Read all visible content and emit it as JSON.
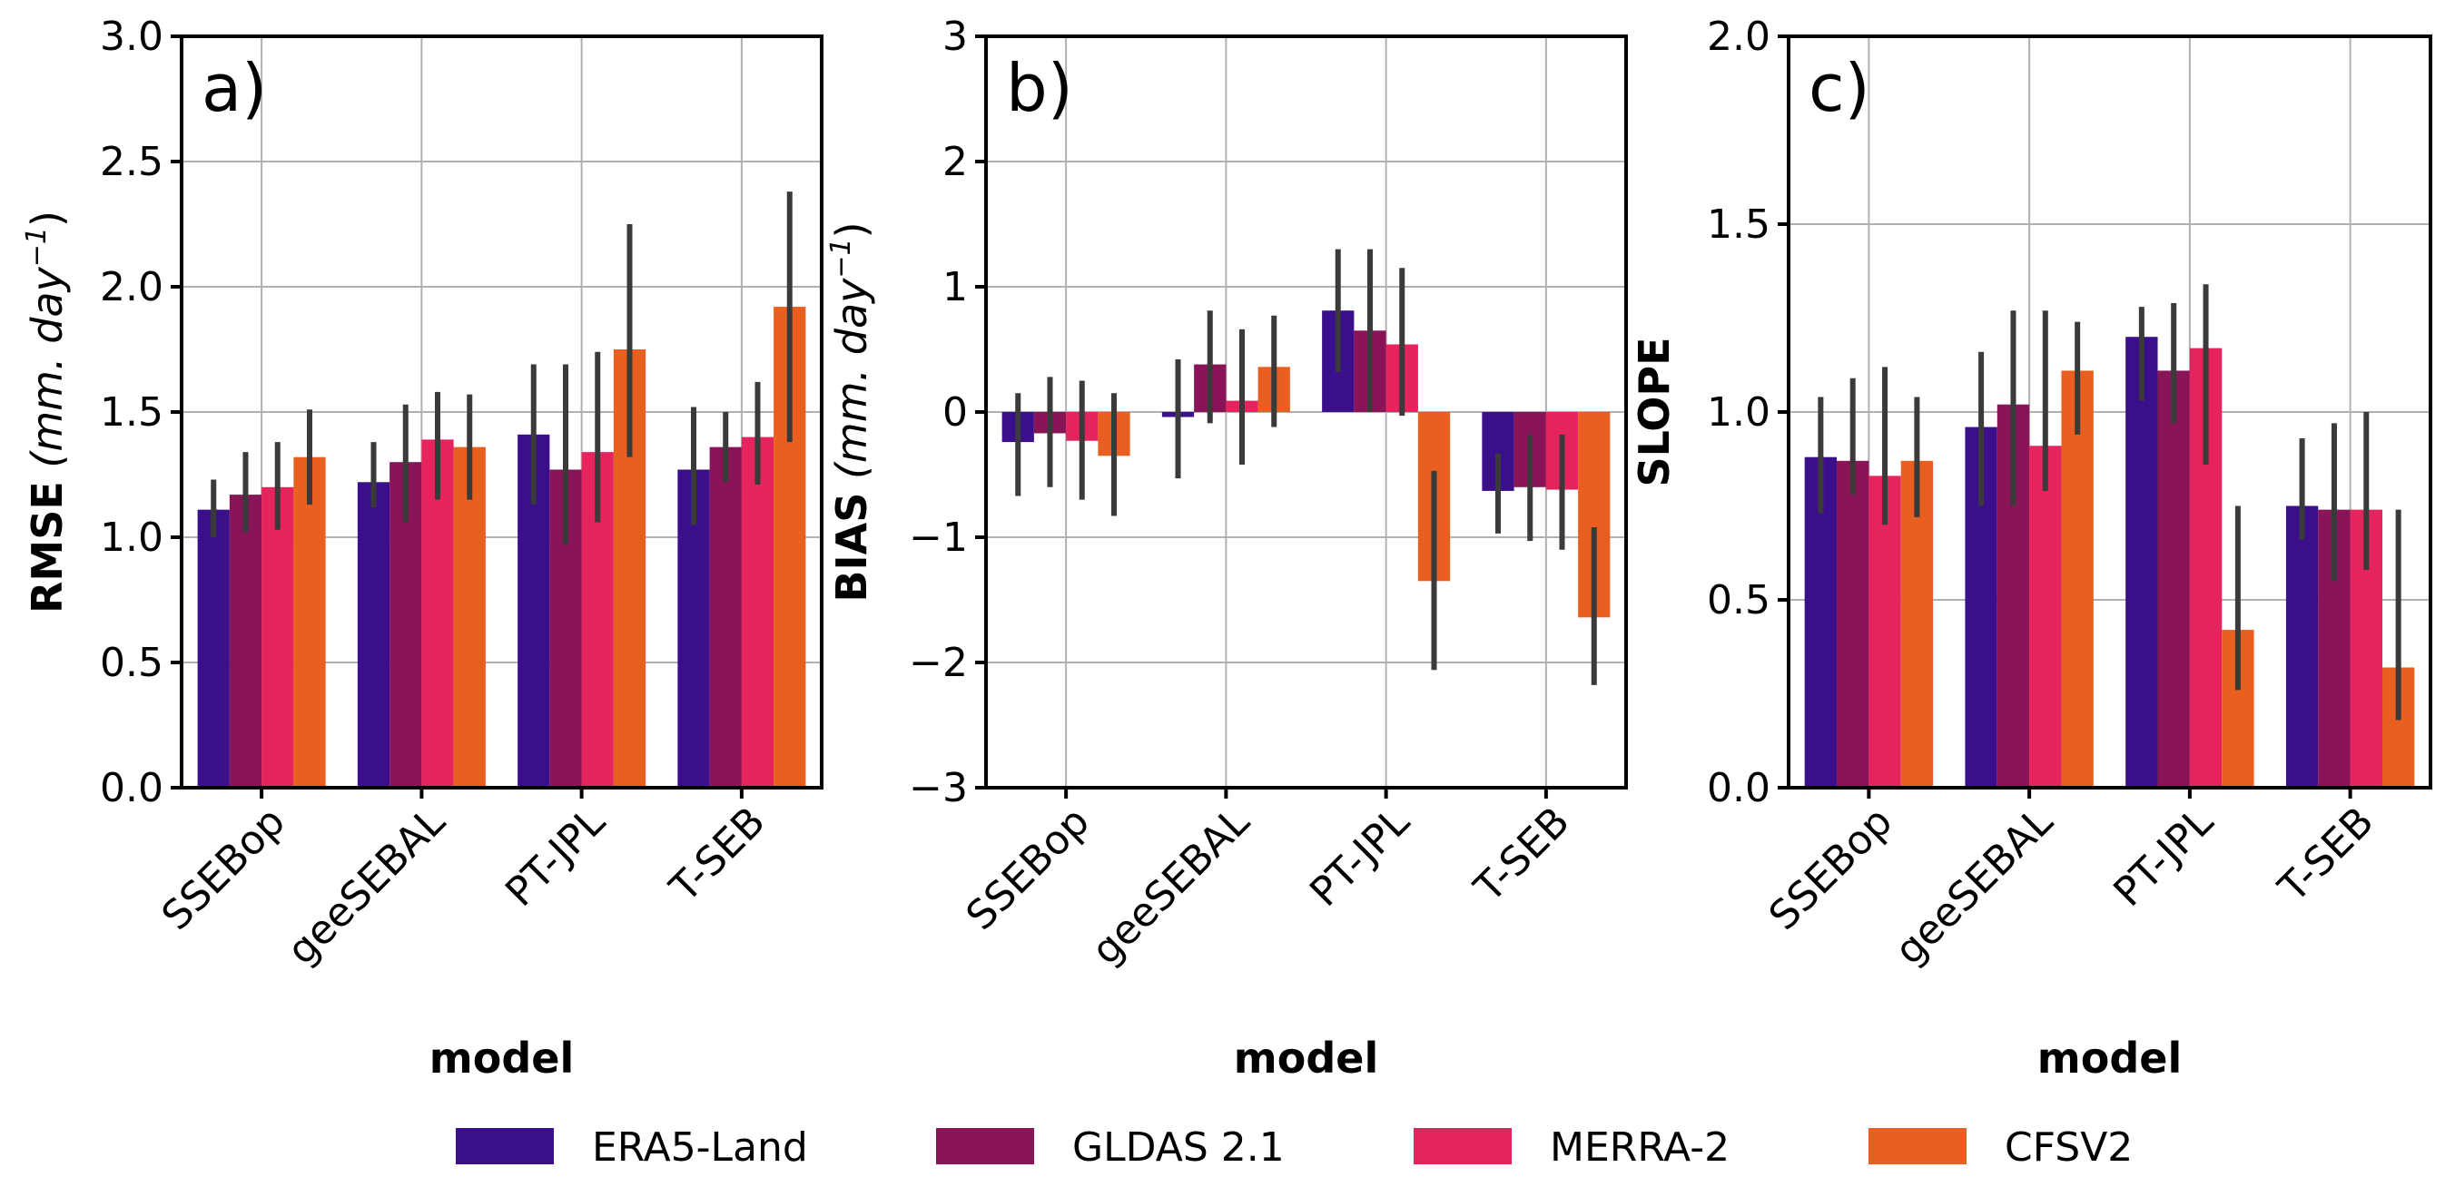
{
  "chart_data": [
    {
      "type": "bar",
      "panel_label": "a)",
      "ylabel_main": "RMSE",
      "ylabel_unit": "(mm. day",
      "ylabel_exp": "−1",
      "ylabel_close": ")",
      "xlabel": "model",
      "categories": [
        "SSEBop",
        "geeSEBAL",
        "PT-JPL",
        "T-SEB"
      ],
      "ylim": [
        0,
        3.0
      ],
      "yticks": [
        0.0,
        0.5,
        1.0,
        1.5,
        2.0,
        2.5,
        3.0
      ],
      "ytick_labels": [
        "0.0",
        "0.5",
        "1.0",
        "1.5",
        "2.0",
        "2.5",
        "3.0"
      ],
      "grid": true,
      "series": [
        {
          "name": "ERA5-Land",
          "values": [
            1.11,
            1.22,
            1.41,
            1.27
          ],
          "err_low": [
            1.0,
            1.12,
            1.13,
            1.05
          ],
          "err_high": [
            1.23,
            1.38,
            1.69,
            1.52
          ]
        },
        {
          "name": "GLDAS 2.1",
          "values": [
            1.17,
            1.3,
            1.27,
            1.36
          ],
          "err_low": [
            1.02,
            1.06,
            0.97,
            1.22
          ],
          "err_high": [
            1.34,
            1.53,
            1.69,
            1.5
          ]
        },
        {
          "name": "MERRA-2",
          "values": [
            1.2,
            1.39,
            1.34,
            1.4
          ],
          "err_low": [
            1.03,
            1.15,
            1.06,
            1.21
          ],
          "err_high": [
            1.38,
            1.58,
            1.74,
            1.62
          ]
        },
        {
          "name": "CFSV2",
          "values": [
            1.32,
            1.36,
            1.75,
            1.92
          ],
          "err_low": [
            1.13,
            1.15,
            1.32,
            1.38
          ],
          "err_high": [
            1.51,
            1.57,
            2.25,
            2.38
          ]
        }
      ]
    },
    {
      "type": "bar",
      "panel_label": "b)",
      "ylabel_main": "BIAS",
      "ylabel_unit": "(mm. day",
      "ylabel_exp": "−1",
      "ylabel_close": ")",
      "xlabel": "model",
      "categories": [
        "SSEBop",
        "geeSEBAL",
        "PT-JPL",
        "T-SEB"
      ],
      "ylim": [
        -3,
        3
      ],
      "yticks": [
        -3,
        -2,
        -1,
        0,
        1,
        2,
        3
      ],
      "ytick_labels": [
        "−3",
        "−2",
        "−1",
        "0",
        "1",
        "2",
        "3"
      ],
      "grid": true,
      "series": [
        {
          "name": "ERA5-Land",
          "values": [
            -0.24,
            -0.04,
            0.81,
            -0.63
          ],
          "err_low": [
            -0.67,
            -0.53,
            0.32,
            -0.97
          ],
          "err_high": [
            0.15,
            0.42,
            1.3,
            -0.33
          ]
        },
        {
          "name": "GLDAS 2.1",
          "values": [
            -0.17,
            0.38,
            0.65,
            -0.6
          ],
          "err_low": [
            -0.6,
            -0.09,
            0.0,
            -1.03
          ],
          "err_high": [
            0.28,
            0.81,
            1.3,
            -0.18
          ]
        },
        {
          "name": "MERRA-2",
          "values": [
            -0.23,
            0.09,
            0.54,
            -0.62
          ],
          "err_low": [
            -0.7,
            -0.42,
            -0.03,
            -1.1
          ],
          "err_high": [
            0.25,
            0.66,
            1.15,
            -0.18
          ]
        },
        {
          "name": "CFSV2",
          "values": [
            -0.35,
            0.36,
            -1.35,
            -1.64
          ],
          "err_low": [
            -0.83,
            -0.12,
            -2.06,
            -2.18
          ],
          "err_high": [
            0.15,
            0.77,
            -0.47,
            -0.92
          ]
        }
      ]
    },
    {
      "type": "bar",
      "panel_label": "c)",
      "ylabel_main": "SLOPE",
      "ylabel_unit": "",
      "ylabel_exp": "",
      "ylabel_close": "",
      "xlabel": "model",
      "categories": [
        "SSEBop",
        "geeSEBAL",
        "PT-JPL",
        "T-SEB"
      ],
      "ylim": [
        0,
        2.0
      ],
      "yticks": [
        0.0,
        0.5,
        1.0,
        1.5,
        2.0
      ],
      "ytick_labels": [
        "0.0",
        "0.5",
        "1.0",
        "1.5",
        "2.0"
      ],
      "grid": true,
      "series": [
        {
          "name": "ERA5-Land",
          "values": [
            0.88,
            0.96,
            1.2,
            0.75
          ],
          "err_low": [
            0.73,
            0.75,
            1.03,
            0.66
          ],
          "err_high": [
            1.04,
            1.16,
            1.28,
            0.93
          ]
        },
        {
          "name": "GLDAS 2.1",
          "values": [
            0.87,
            1.02,
            1.11,
            0.74
          ],
          "err_low": [
            0.78,
            0.75,
            0.97,
            0.55
          ],
          "err_high": [
            1.09,
            1.27,
            1.29,
            0.97
          ]
        },
        {
          "name": "MERRA-2",
          "values": [
            0.83,
            0.91,
            1.17,
            0.74
          ],
          "err_low": [
            0.7,
            0.79,
            0.86,
            0.58
          ],
          "err_high": [
            1.12,
            1.27,
            1.34,
            1.0
          ]
        },
        {
          "name": "CFSV2",
          "values": [
            0.87,
            1.11,
            0.42,
            0.32
          ],
          "err_low": [
            0.72,
            0.94,
            0.26,
            0.18
          ],
          "err_high": [
            1.04,
            1.24,
            0.75,
            0.74
          ]
        }
      ]
    }
  ],
  "legend": {
    "position": "bottom-center",
    "entries": [
      "ERA5-Land",
      "GLDAS 2.1",
      "MERRA-2",
      "CFSV2"
    ]
  },
  "colors": {
    "ERA5-Land": "#3b0f8c",
    "GLDAS 2.1": "#8a1458",
    "MERRA-2": "#e5245e",
    "CFSV2": "#e85f20"
  }
}
